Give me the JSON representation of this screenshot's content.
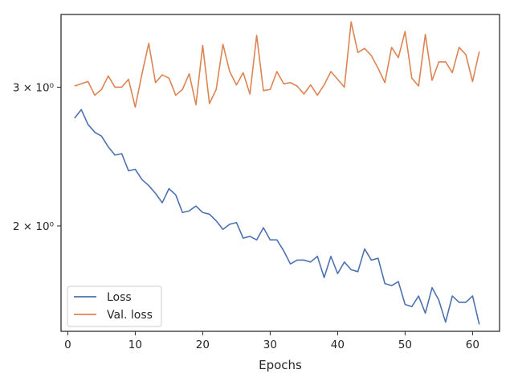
{
  "chart_data": {
    "type": "line",
    "title": "",
    "xlabel": "Epochs",
    "ylabel": "",
    "yscale": "log",
    "xlim": [
      -1.0,
      64.0
    ],
    "ylim": [
      1.47,
      3.71
    ],
    "x_ticks": [
      0,
      10,
      20,
      30,
      40,
      50,
      60
    ],
    "x_tick_labels": [
      "0",
      "10",
      "20",
      "30",
      "40",
      "50",
      "60"
    ],
    "y_ticks": [
      2,
      3
    ],
    "y_tick_labels": [
      "2 × 10⁰",
      "3 × 10⁰"
    ],
    "grid": false,
    "legend": "bottom-left",
    "x": [
      1,
      2,
      3,
      4,
      5,
      6,
      7,
      8,
      9,
      10,
      11,
      12,
      13,
      14,
      15,
      16,
      17,
      18,
      19,
      20,
      21,
      22,
      23,
      24,
      25,
      26,
      27,
      28,
      29,
      30,
      31,
      32,
      33,
      34,
      35,
      36,
      37,
      38,
      39,
      40,
      41,
      42,
      43,
      44,
      45,
      46,
      47,
      48,
      49,
      50,
      51,
      52,
      53,
      54,
      55,
      56,
      57,
      58,
      59,
      60,
      61
    ],
    "series": [
      {
        "name": "Loss",
        "color": "#4c72b0",
        "values": [
          2.74,
          2.81,
          2.69,
          2.63,
          2.6,
          2.52,
          2.46,
          2.47,
          2.35,
          2.36,
          2.29,
          2.25,
          2.2,
          2.14,
          2.23,
          2.19,
          2.08,
          2.09,
          2.12,
          2.08,
          2.07,
          2.03,
          1.98,
          2.01,
          2.02,
          1.93,
          1.94,
          1.92,
          1.99,
          1.92,
          1.92,
          1.86,
          1.79,
          1.81,
          1.81,
          1.8,
          1.83,
          1.72,
          1.83,
          1.74,
          1.8,
          1.76,
          1.75,
          1.87,
          1.81,
          1.82,
          1.69,
          1.68,
          1.7,
          1.59,
          1.58,
          1.63,
          1.55,
          1.67,
          1.61,
          1.51,
          1.63,
          1.6,
          1.6,
          1.63,
          1.5
        ]
      },
      {
        "name": "Val. loss",
        "color": "#dd8452",
        "values": [
          3.01,
          3.03,
          3.05,
          2.93,
          2.98,
          3.1,
          3.0,
          3.0,
          3.07,
          2.83,
          3.12,
          3.41,
          3.04,
          3.11,
          3.08,
          2.93,
          2.98,
          3.12,
          2.85,
          3.39,
          2.86,
          2.98,
          3.4,
          3.14,
          3.02,
          3.13,
          2.94,
          3.49,
          2.97,
          2.98,
          3.14,
          3.03,
          3.04,
          3.01,
          2.94,
          3.02,
          2.93,
          3.02,
          3.14,
          3.07,
          3.0,
          3.63,
          3.32,
          3.36,
          3.29,
          3.17,
          3.04,
          3.37,
          3.27,
          3.53,
          3.08,
          3.01,
          3.5,
          3.06,
          3.23,
          3.23,
          3.13,
          3.37,
          3.3,
          3.05,
          3.33
        ]
      }
    ]
  }
}
